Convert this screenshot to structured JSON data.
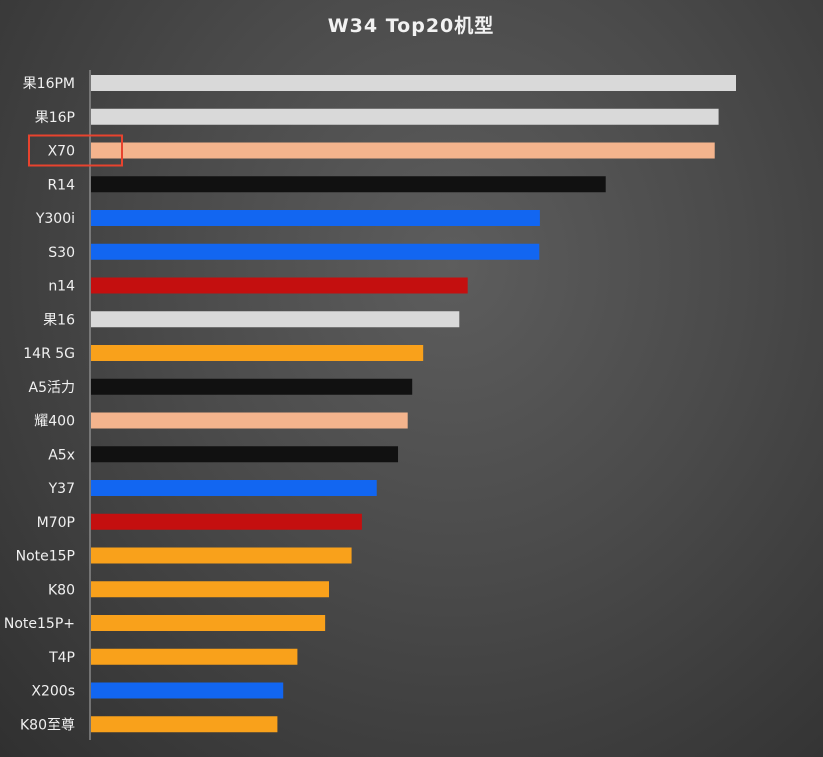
{
  "chart_data": {
    "type": "bar",
    "orientation": "horizontal",
    "title": "W34 Top20机型",
    "xlabel": "",
    "ylabel": "",
    "categories": [
      "果16PM",
      "果16P",
      "X70",
      "R14",
      "Y300i",
      "S30",
      "n14",
      "果16",
      "14R 5G",
      "A5活力",
      "耀400",
      "A5x",
      "Y37",
      "M70P",
      "Note15P",
      "K80",
      "Note15P+",
      "T4P",
      "X200s",
      "K80至尊"
    ],
    "values": [
      100,
      97.3,
      96.7,
      79.8,
      69.6,
      69.5,
      58.4,
      57.1,
      51.5,
      49.8,
      49.1,
      47.6,
      44.3,
      42.0,
      40.4,
      36.9,
      36.3,
      32.0,
      29.8,
      28.9
    ],
    "bar_colors": [
      "#d9d9d9",
      "#d9d9d9",
      "#f4b48d",
      "#111111",
      "#1266f1",
      "#1266f1",
      "#c40f0f",
      "#d9d9d9",
      "#f9a11b",
      "#111111",
      "#f4b48d",
      "#111111",
      "#1266f1",
      "#c40f0f",
      "#f9a11b",
      "#f9a11b",
      "#f9a11b",
      "#f9a11b",
      "#1266f1",
      "#f9a11b"
    ],
    "xlim": [
      0,
      100
    ],
    "grid": false,
    "legend": "none",
    "highlight": {
      "category": "X70",
      "color": "#e8432e"
    }
  }
}
